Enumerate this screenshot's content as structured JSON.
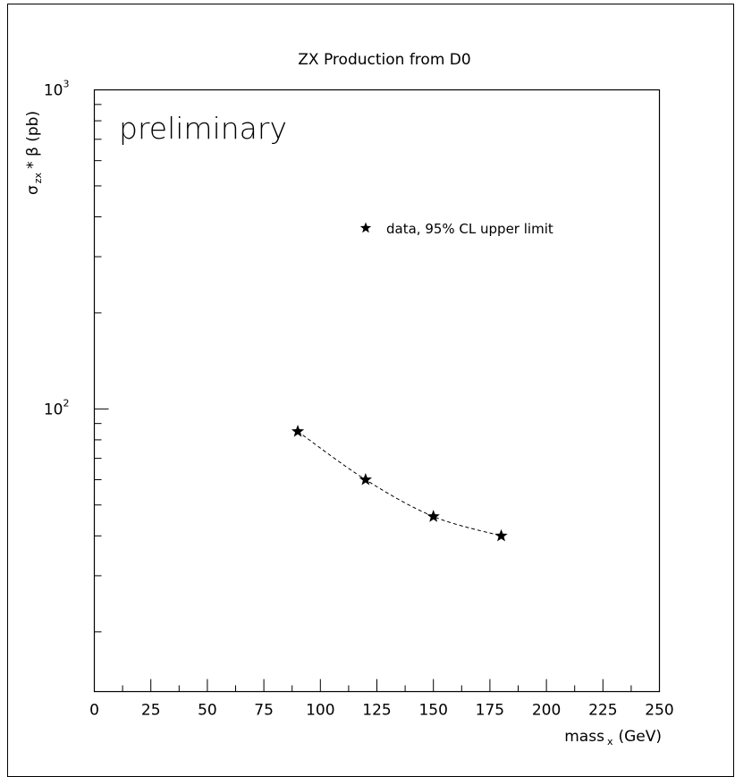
{
  "chart_data": {
    "type": "scatter",
    "title": "ZX Production from D0",
    "annotation": "preliminary",
    "xlabel": "mass",
    "xlabel_sub": "x",
    "xlabel_unit": "(GeV)",
    "ylabel": "σ",
    "ylabel_sub": "zx",
    "ylabel_rest": "* β (pb)",
    "x_ticks": [
      "0",
      "25",
      "50",
      "75",
      "100",
      "125",
      "150",
      "175",
      "200",
      "225",
      "250"
    ],
    "xlim": [
      0,
      250
    ],
    "ylim": [
      13,
      1000
    ],
    "y_scale": "log",
    "y_ticks": [
      {
        "base": "10",
        "exp": "2",
        "value": 100
      },
      {
        "base": "10",
        "exp": "3",
        "value": 1000
      }
    ],
    "legend_position": "top-right",
    "grid": false,
    "series": [
      {
        "name": "data, 95% CL upper limit",
        "marker": "star",
        "line": "dashed",
        "color": "#000000",
        "x": [
          90,
          120,
          150,
          180
        ],
        "y": [
          85,
          60,
          46,
          40
        ]
      }
    ]
  }
}
